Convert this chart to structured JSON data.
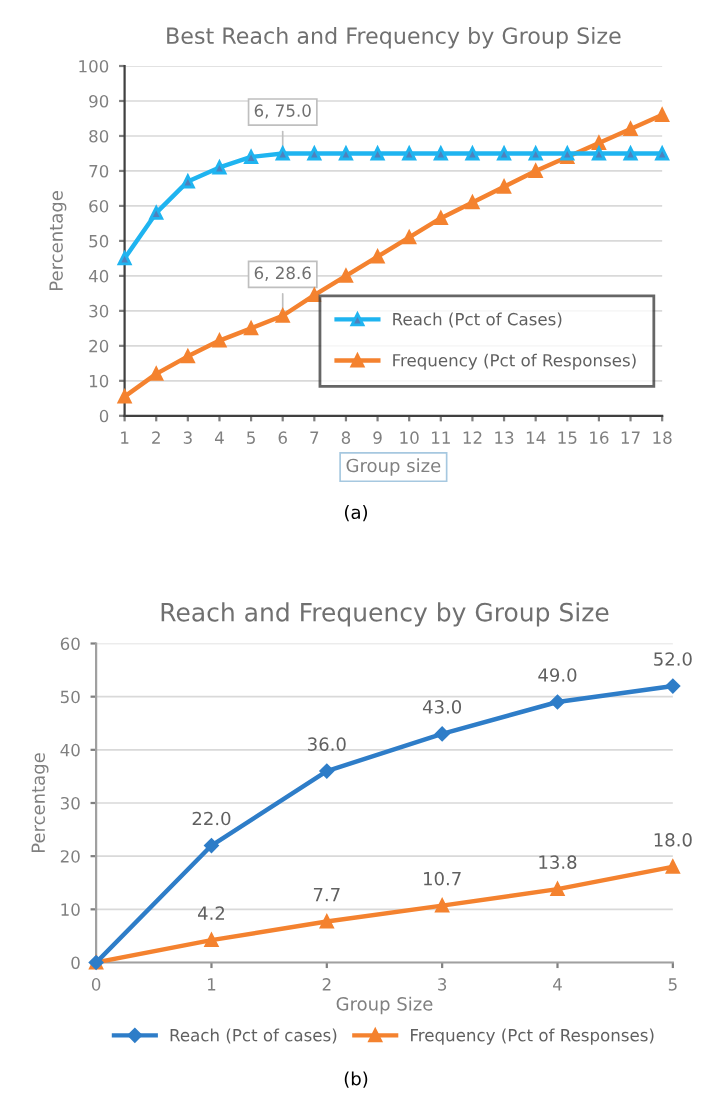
{
  "chart_data": [
    {
      "type": "line",
      "title": "Best Reach and Frequency by Group Size",
      "xlabel": "Group size",
      "ylabel": "Percentage",
      "x": [
        1,
        2,
        3,
        4,
        5,
        6,
        7,
        8,
        9,
        10,
        11,
        12,
        13,
        14,
        15,
        16,
        17,
        18
      ],
      "series": [
        {
          "name": "Reach (Pct of Cases)",
          "color": "#1fb4f0",
          "marker": "triangle",
          "values": [
            45,
            58,
            67,
            71,
            74,
            75,
            75,
            75,
            75,
            75,
            75,
            75,
            75,
            75,
            75,
            75,
            75,
            75
          ]
        },
        {
          "name": "Frequency (Pct of Responses)",
          "color": "#f4822f",
          "marker": "triangle",
          "values": [
            5.5,
            12,
            17,
            21.5,
            25,
            28.6,
            34.5,
            40,
            45.5,
            51,
            56.5,
            61,
            65.5,
            70,
            74,
            78,
            82,
            86
          ]
        }
      ],
      "xlim": [
        1,
        18
      ],
      "xticks": [
        1,
        2,
        3,
        4,
        5,
        6,
        7,
        8,
        9,
        10,
        11,
        12,
        13,
        14,
        15,
        16,
        17,
        18
      ],
      "ylim": [
        0,
        100
      ],
      "yticks": [
        0,
        10,
        20,
        30,
        40,
        50,
        60,
        70,
        80,
        90,
        100
      ],
      "grid": "y",
      "legend": "bottom right",
      "annotations": [
        {
          "text": "6, 75.0",
          "x": 6,
          "y": 75
        },
        {
          "text": "6, 28.6",
          "x": 6,
          "y": 28.6
        },
        "(a)"
      ]
    },
    {
      "type": "line",
      "title": "Reach and Frequency by Group Size",
      "xlabel": "Group Size",
      "ylabel": "Percentage",
      "x": [
        0,
        1,
        2,
        3,
        4,
        5
      ],
      "series": [
        {
          "name": "Reach (Pct of cases)",
          "color": "#2e7dc8",
          "marker": "diamond",
          "values": [
            0,
            22,
            36,
            43,
            49,
            52
          ],
          "value_labels": [
            null,
            "22.0",
            "36.0",
            "43.0",
            "49.0",
            "52.0"
          ]
        },
        {
          "name": "Frequency (Pct of Responses)",
          "color": "#f4822f",
          "marker": "triangle",
          "values": [
            0,
            4.2,
            7.7,
            10.7,
            13.8,
            18
          ],
          "value_labels": [
            null,
            "4.2",
            "7.7",
            "10.7",
            "13.8",
            "18.0"
          ]
        }
      ],
      "xlim": [
        0,
        5
      ],
      "xticks": [
        0,
        1,
        2,
        3,
        4,
        5
      ],
      "ylim": [
        0,
        60
      ],
      "yticks": [
        0,
        10,
        20,
        30,
        40,
        50,
        60
      ],
      "grid": "y",
      "legend": "bottom",
      "annotations": [
        "(b)"
      ]
    }
  ]
}
